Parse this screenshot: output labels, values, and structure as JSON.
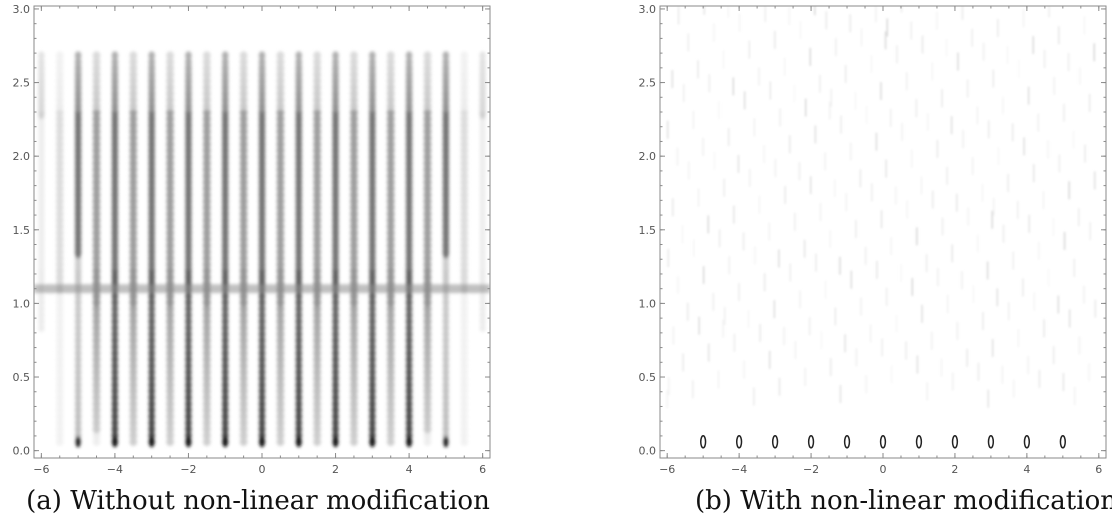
{
  "chart_data": [
    {
      "type": "heatmap",
      "title": "",
      "xlabel": "",
      "ylabel": "",
      "caption": "(a) Without non-linear modification",
      "xlim": [
        -6.2,
        6.2
      ],
      "ylim": [
        -0.05,
        3.02
      ],
      "x_ticks": [
        -6,
        -4,
        -2,
        0,
        2,
        4,
        6
      ],
      "y_ticks": [
        0.0,
        0.5,
        1.0,
        1.5,
        2.0,
        2.5,
        3.0
      ],
      "y_tick_labels": [
        "0.0",
        "0.5",
        "1.0",
        "1.5",
        "2.0",
        "2.5",
        "3.0"
      ],
      "colormap": "grayscale (white = 0, black = max)",
      "source_positions": [
        -5,
        -4,
        -3,
        -2,
        -1,
        0,
        1,
        2,
        3,
        4,
        5
      ],
      "band_level": 1.1,
      "grid": false
    },
    {
      "type": "heatmap",
      "title": "",
      "xlabel": "",
      "ylabel": "",
      "caption": "(b) With non-linear modification",
      "xlim": [
        -6.2,
        6.2
      ],
      "ylim": [
        -0.05,
        3.02
      ],
      "x_ticks": [
        -6,
        -4,
        -2,
        0,
        2,
        4,
        6
      ],
      "y_ticks": [
        0.0,
        0.5,
        1.0,
        1.5,
        2.0,
        2.5,
        3.0
      ],
      "y_tick_labels": [
        "0.0",
        "0.5",
        "1.0",
        "1.5",
        "2.0",
        "2.5",
        "3.0"
      ],
      "colormap": "grayscale (white = 0, black = max)",
      "source_positions": [
        -5,
        -4,
        -3,
        -2,
        -1,
        0,
        1,
        2,
        3,
        4,
        5
      ],
      "grid": false
    }
  ]
}
